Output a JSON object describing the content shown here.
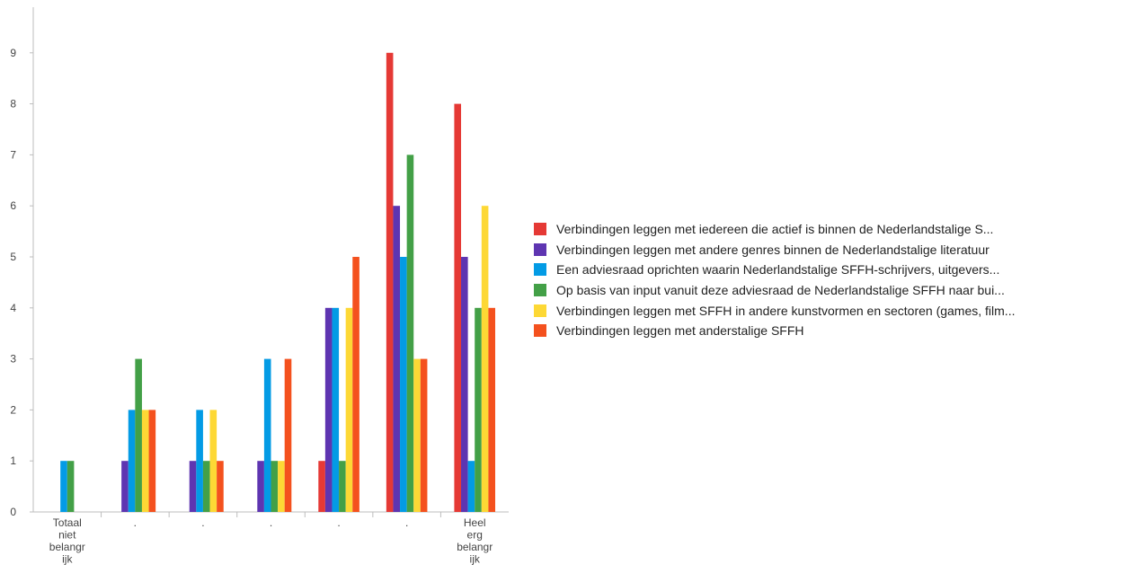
{
  "chart_data": {
    "type": "bar",
    "title": "",
    "xlabel": "",
    "ylabel": "",
    "ylim": [
      0,
      9.5
    ],
    "yticks": [
      0,
      1,
      2,
      3,
      4,
      5,
      6,
      7,
      8,
      9
    ],
    "grid": false,
    "legend_position": "right",
    "categories": [
      "Totaal niet belangrijk",
      ".",
      ".",
      ".",
      ".",
      ".",
      "Heel erg belangrijk"
    ],
    "category_label_lines": [
      [
        "Totaal",
        "niet",
        "belangr",
        "ijk"
      ],
      [
        "."
      ],
      [
        "."
      ],
      [
        "."
      ],
      [
        "."
      ],
      [
        "."
      ],
      [
        "Heel",
        "erg",
        "belangr",
        "ijk"
      ]
    ],
    "series": [
      {
        "name": "Verbindingen leggen met iedereen die actief is binnen de Nederlandstalige S...",
        "color": "#e53935",
        "values": [
          0,
          0,
          0,
          0,
          1,
          9,
          8
        ]
      },
      {
        "name": "Verbindingen leggen met andere genres binnen de Nederlandstalige literatuur",
        "color": "#5e35b1",
        "values": [
          0,
          1,
          1,
          1,
          4,
          6,
          5
        ]
      },
      {
        "name": "Een adviesraad oprichten waarin Nederlandstalige SFFH-schrijvers, uitgevers...",
        "color": "#039be5",
        "values": [
          1,
          2,
          2,
          3,
          4,
          5,
          1
        ]
      },
      {
        "name": "Op basis van input vanuit deze adviesraad de Nederlandstalige SFFH naar bui...",
        "color": "#43a047",
        "values": [
          1,
          3,
          1,
          1,
          1,
          7,
          4
        ]
      },
      {
        "name": "Verbindingen leggen met SFFH in andere kunstvormen en sectoren (games, film...",
        "color": "#fdd835",
        "values": [
          0,
          2,
          2,
          1,
          4,
          3,
          6
        ]
      },
      {
        "name": "Verbindingen leggen met anderstalige SFFH",
        "color": "#f4511e",
        "values": [
          0,
          2,
          1,
          3,
          5,
          3,
          4
        ]
      }
    ]
  }
}
